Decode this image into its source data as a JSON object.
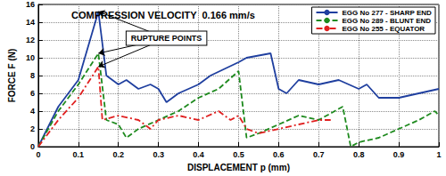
{
  "chart_data": {
    "type": "line",
    "title": "COMPRESSION VELOCITY  0.166 mm/s",
    "x_label": "DISPLACEMENT p (mm)",
    "y_label": "FORCE F (N)",
    "xlim": [
      0,
      1
    ],
    "xticks": [
      0,
      0.1,
      0.2,
      0.3,
      0.4,
      0.5,
      0.6,
      0.7,
      0.8,
      0.9,
      1
    ],
    "ylim": [
      0,
      16
    ],
    "yticks": [
      0,
      2,
      4,
      6,
      8,
      10,
      12,
      14,
      16
    ],
    "grid": true,
    "legend": "top-right",
    "annotations": [
      {
        "text": "RUPTURE POINTS",
        "x": 0.32,
        "y": 12.2
      }
    ],
    "series": [
      {
        "name": "EGG No 277 - SHARP END",
        "color": "#1f3f9f",
        "line_style": "solid",
        "x": [
          0,
          0.05,
          0.1,
          0.15,
          0.17,
          0.2,
          0.22,
          0.25,
          0.28,
          0.3,
          0.32,
          0.35,
          0.4,
          0.43,
          0.5,
          0.52,
          0.58,
          0.6,
          0.62,
          0.65,
          0.7,
          0.75,
          0.8,
          0.82,
          0.85,
          0.9,
          0.95,
          1
        ],
        "values": [
          0,
          4.5,
          7.5,
          15.2,
          8,
          7,
          7.5,
          6.5,
          7,
          6.5,
          5,
          6,
          7,
          8,
          9.5,
          10,
          10.5,
          6.5,
          6,
          7.5,
          7,
          7.5,
          6.5,
          7,
          5.5,
          5.5,
          6,
          6.5
        ]
      },
      {
        "name": "EGG No 289 - BLUNT END",
        "color": "#1e8a1e",
        "line_style": "dashed",
        "x": [
          0,
          0.05,
          0.1,
          0.15,
          0.17,
          0.2,
          0.22,
          0.25,
          0.3,
          0.35,
          0.4,
          0.45,
          0.5,
          0.52,
          0.55,
          0.6,
          0.65,
          0.7,
          0.74,
          0.76,
          0.78,
          0.8,
          0.85,
          0.9,
          0.95,
          0.99,
          1
        ],
        "values": [
          0,
          4,
          7,
          10.5,
          3,
          2.5,
          1,
          2,
          3,
          4,
          5.5,
          6.5,
          8.5,
          1,
          1.5,
          2.5,
          3.5,
          3,
          4,
          4.5,
          0,
          0.5,
          1,
          2,
          3,
          4,
          3.5
        ]
      },
      {
        "name": "EGG No 255 - EQUATOR",
        "color": "#e02020",
        "line_style": "dashdot",
        "x": [
          0,
          0.05,
          0.1,
          0.15,
          0.16,
          0.2,
          0.25,
          0.28,
          0.3,
          0.35,
          0.4,
          0.45,
          0.48,
          0.5,
          0.52,
          0.55,
          0.6,
          0.65,
          0.7,
          0.73
        ],
        "values": [
          0,
          3,
          5.5,
          9,
          3,
          3.5,
          3,
          2,
          3,
          3.5,
          3,
          4,
          3,
          3.5,
          2,
          1.5,
          2,
          2.5,
          3,
          3
        ]
      }
    ]
  }
}
